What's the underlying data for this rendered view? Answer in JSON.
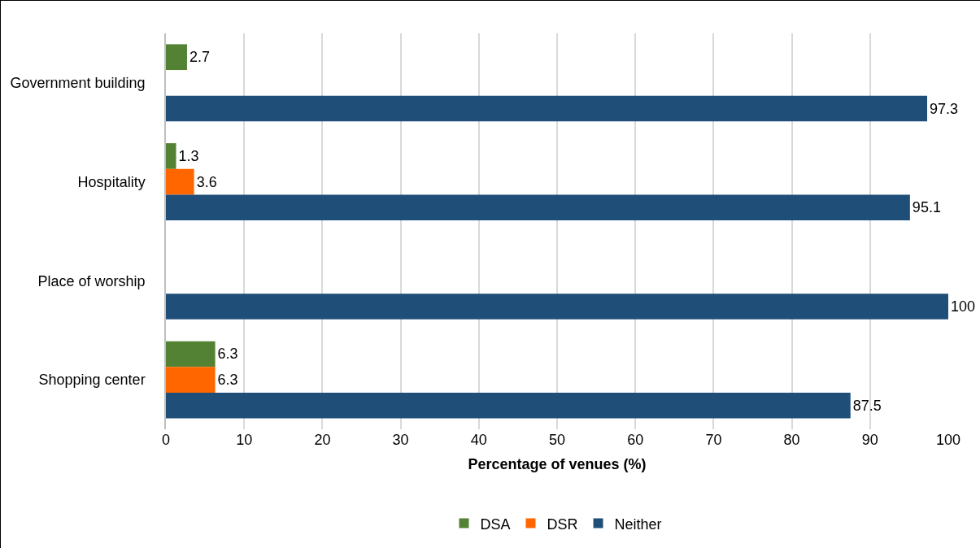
{
  "chart_data": {
    "type": "bar",
    "orientation": "horizontal",
    "xlabel": "Percentage of venues (%)",
    "categories": [
      "Government building",
      "Hospitality",
      "Place of worship",
      "Shopping center"
    ],
    "series": [
      {
        "name": "DSA",
        "color": "#548235",
        "values": [
          2.7,
          1.3,
          null,
          6.3
        ]
      },
      {
        "name": "DSR",
        "color": "#ff6600",
        "values": [
          null,
          3.6,
          null,
          6.3
        ]
      },
      {
        "name": "Neither",
        "color": "#1f4e79",
        "values": [
          97.3,
          95.1,
          100,
          87.5
        ]
      }
    ],
    "xlim": [
      0,
      100
    ],
    "xticks": [
      0,
      10,
      20,
      30,
      40,
      50,
      60,
      70,
      80,
      90,
      100
    ],
    "grid": "x",
    "legend": "bottom",
    "data_labels": true
  }
}
